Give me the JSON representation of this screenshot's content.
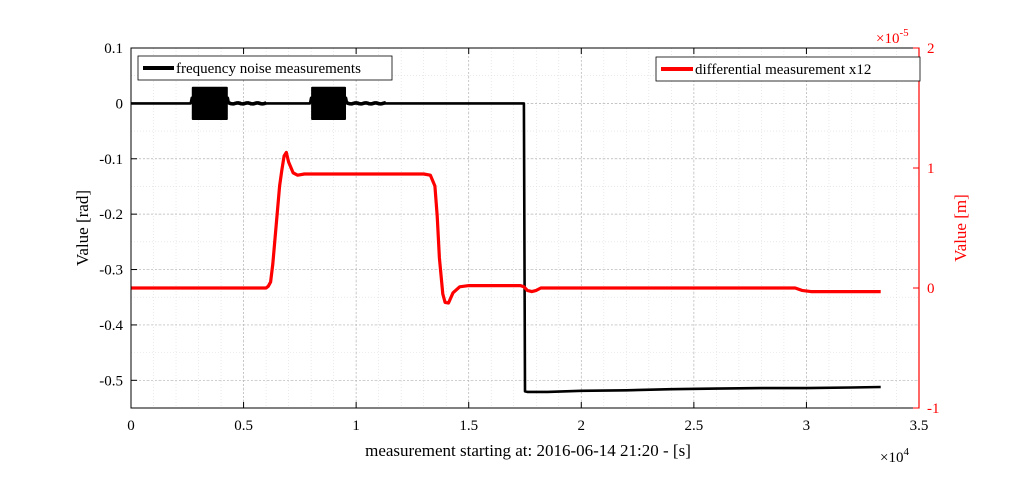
{
  "chart_data": {
    "type": "line",
    "xlabel": "measurement starting at: 2016-06-14 21:20 -  [s]",
    "x_exponent": "×10",
    "x_exponent_power": "4",
    "ylabel_left": "Value [rad]",
    "ylabel_right": "Value [m]",
    "y_right_exponent": "×10",
    "y_right_exponent_power": "-5",
    "xlim": [
      0,
      35000
    ],
    "ylim_left": [
      -0.55,
      0.1
    ],
    "ylim_right": [
      -1e-05,
      2e-05
    ],
    "x_ticks": [
      0,
      5000,
      10000,
      15000,
      20000,
      25000,
      30000,
      35000
    ],
    "x_tick_labels": [
      "0",
      "0.5",
      "1",
      "1.5",
      "2",
      "2.5",
      "3",
      "3.5"
    ],
    "y_left_ticks": [
      0.1,
      0,
      -0.1,
      -0.2,
      -0.3,
      -0.4,
      -0.5
    ],
    "y_left_tick_labels": [
      "0.1",
      "0",
      "-0.1",
      "-0.2",
      "-0.3",
      "-0.4",
      "-0.5"
    ],
    "y_right_ticks": [
      2e-05,
      1e-05,
      0,
      -1e-05
    ],
    "y_right_tick_labels": [
      "2",
      "1",
      "0",
      "-1"
    ],
    "grid": true,
    "colors": {
      "series1": "#000000",
      "series2": "#ff0000",
      "right_axis": "#ff0000"
    },
    "series": [
      {
        "name": "frequency noise measurements",
        "axis": "left",
        "x": [
          0,
          2650,
          2700,
          4300,
          4350,
          6000,
          7950,
          8000,
          9550,
          9600,
          11300,
          11350,
          17300,
          17450,
          17500,
          17600,
          18500,
          20000,
          22000,
          24000,
          26000,
          28000,
          30000,
          32000,
          33300
        ],
        "y": [
          0,
          0,
          0.01,
          0.01,
          0,
          0,
          0,
          0.01,
          0.01,
          0,
          0,
          0,
          0,
          0,
          -0.52,
          -0.521,
          -0.521,
          -0.519,
          -0.518,
          -0.516,
          -0.515,
          -0.514,
          -0.514,
          -0.513,
          -0.512
        ],
        "bursts": [
          {
            "x0": 2700,
            "x1": 4300,
            "y0": -0.03,
            "y1": 0.03
          },
          {
            "x0": 8000,
            "x1": 9550,
            "y0": -0.03,
            "y1": 0.03
          }
        ],
        "small_noise": [
          {
            "x0": 4300,
            "x1": 6000,
            "amp": 0.004
          },
          {
            "x0": 9550,
            "x1": 11300,
            "amp": 0.004
          }
        ]
      },
      {
        "name": "differential measurement x12",
        "axis": "right",
        "x": [
          0,
          6000,
          6100,
          6200,
          6300,
          6600,
          6700,
          6800,
          6900,
          7000,
          7200,
          7400,
          7700,
          10000,
          13000,
          13300,
          13500,
          13600,
          13700,
          13850,
          13950,
          14100,
          14300,
          14600,
          15000,
          16000,
          17300,
          17450,
          17600,
          17800,
          18000,
          18200,
          18500,
          20000,
          25000,
          29500,
          29800,
          30200,
          31000,
          33300
        ],
        "y": [
          0,
          0,
          1.5e-07,
          5e-07,
          2e-06,
          8.5e-06,
          9.8e-06,
          1.1e-05,
          1.13e-05,
          1.05e-05,
          9.6e-06,
          9.4e-06,
          9.5e-06,
          9.5e-06,
          9.5e-06,
          9.4e-06,
          8.5e-06,
          6e-06,
          2.5e-06,
          -5e-07,
          -1.2e-06,
          -1.25e-06,
          -4e-07,
          1e-07,
          2e-07,
          2e-07,
          2e-07,
          1e-07,
          -2e-07,
          -3e-07,
          -2e-07,
          0,
          0,
          0,
          0,
          0,
          -2e-07,
          -3e-07,
          -3e-07,
          -3e-07
        ]
      }
    ],
    "legend": [
      {
        "label": "frequency noise measurements",
        "color": "#000000",
        "position": "top-left"
      },
      {
        "label": "differential measurement x12",
        "color": "#ff0000",
        "position": "top-right"
      }
    ]
  }
}
